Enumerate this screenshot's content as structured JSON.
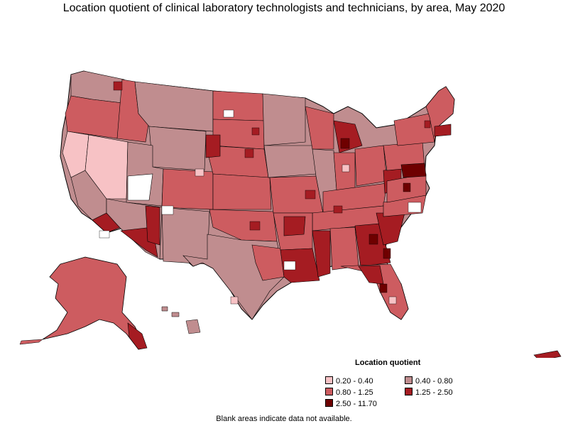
{
  "title": "Location quotient of clinical laboratory technologists and technicians, by area, May 2020",
  "legend": {
    "title": "Location quotient",
    "items": [
      {
        "label": "0.20 - 0.40",
        "color": "#f7c2c5"
      },
      {
        "label": "0.40 - 0.80",
        "color": "#c08d8f"
      },
      {
        "label": "0.80 - 1.25",
        "color": "#cd5c60"
      },
      {
        "label": "1.25 - 2.50",
        "color": "#a51c22"
      },
      {
        "label": "2.50 - 11.70",
        "color": "#6e0000"
      }
    ]
  },
  "footnote": "Blank areas indicate data not available.",
  "colors": {
    "class_0_20_0_40": "#f7c2c5",
    "class_0_40_0_80": "#c08d8f",
    "class_0_80_1_25": "#cd5c60",
    "class_1_25_2_50": "#a51c22",
    "class_2_50_11_70": "#6e0000",
    "no_data": "#ffffff",
    "border": "#000000"
  }
}
